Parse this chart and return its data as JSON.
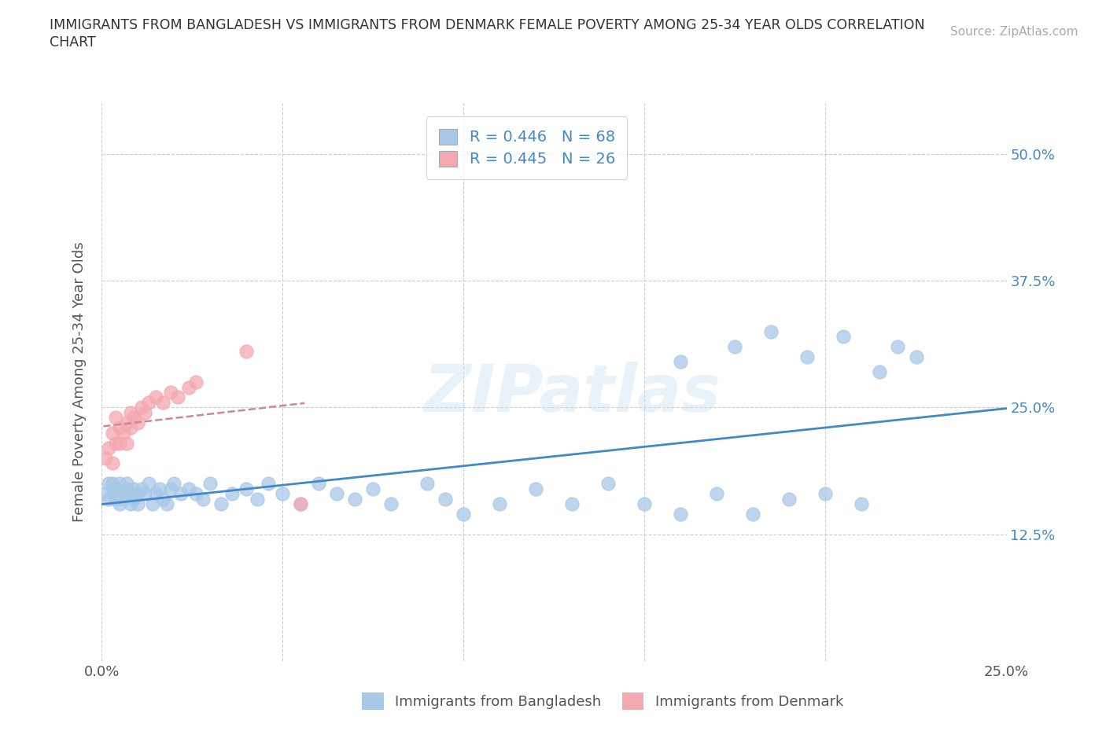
{
  "title_line1": "IMMIGRANTS FROM BANGLADESH VS IMMIGRANTS FROM DENMARK FEMALE POVERTY AMONG 25-34 YEAR OLDS CORRELATION",
  "title_line2": "CHART",
  "source_text": "Source: ZipAtlas.com",
  "ylabel": "Female Poverty Among 25-34 Year Olds",
  "xlim": [
    0.0,
    0.25
  ],
  "ylim": [
    0.0,
    0.55
  ],
  "xticks": [
    0.0,
    0.05,
    0.1,
    0.15,
    0.2,
    0.25
  ],
  "xticklabels": [
    "0.0%",
    "",
    "",
    "",
    "",
    "25.0%"
  ],
  "yticks": [
    0.0,
    0.125,
    0.25,
    0.375,
    0.5
  ],
  "yticklabels_left": [
    "",
    "",
    "",
    "",
    ""
  ],
  "yticklabels_right": [
    "",
    "12.5%",
    "25.0%",
    "37.5%",
    "50.0%"
  ],
  "watermark": "ZIPatlas",
  "color_bangladesh": "#a8c8e8",
  "color_denmark": "#f4a8b0",
  "trendline_color_bangladesh": "#4488cc",
  "trendline_color_denmark": "#cc8899",
  "background_color": "#ffffff",
  "grid_color": "#cccccc",
  "right_axis_color": "#4488cc",
  "legend_label1": "R = 0.446   N = 68",
  "legend_label2": "R = 0.445   N = 26",
  "bangladesh_x": [
    0.001,
    0.002,
    0.002,
    0.003,
    0.003,
    0.004,
    0.004,
    0.005,
    0.005,
    0.006,
    0.006,
    0.007,
    0.007,
    0.008,
    0.008,
    0.009,
    0.009,
    0.01,
    0.01,
    0.011,
    0.012,
    0.013,
    0.014,
    0.015,
    0.016,
    0.017,
    0.018,
    0.019,
    0.02,
    0.022,
    0.024,
    0.026,
    0.028,
    0.03,
    0.033,
    0.036,
    0.04,
    0.043,
    0.046,
    0.05,
    0.055,
    0.06,
    0.065,
    0.07,
    0.075,
    0.08,
    0.09,
    0.095,
    0.1,
    0.11,
    0.12,
    0.13,
    0.14,
    0.15,
    0.16,
    0.17,
    0.18,
    0.19,
    0.2,
    0.21,
    0.16,
    0.175,
    0.185,
    0.195,
    0.205,
    0.215,
    0.22,
    0.225
  ],
  "bangladesh_y": [
    0.165,
    0.16,
    0.175,
    0.165,
    0.175,
    0.16,
    0.17,
    0.155,
    0.175,
    0.165,
    0.16,
    0.17,
    0.175,
    0.155,
    0.165,
    0.16,
    0.17,
    0.165,
    0.155,
    0.17,
    0.165,
    0.175,
    0.155,
    0.165,
    0.17,
    0.16,
    0.155,
    0.17,
    0.175,
    0.165,
    0.17,
    0.165,
    0.16,
    0.175,
    0.155,
    0.165,
    0.17,
    0.16,
    0.175,
    0.165,
    0.155,
    0.175,
    0.165,
    0.16,
    0.17,
    0.155,
    0.175,
    0.16,
    0.145,
    0.155,
    0.17,
    0.155,
    0.175,
    0.155,
    0.145,
    0.165,
    0.145,
    0.16,
    0.165,
    0.155,
    0.295,
    0.31,
    0.325,
    0.3,
    0.32,
    0.285,
    0.31,
    0.3
  ],
  "denmark_x": [
    0.001,
    0.002,
    0.003,
    0.003,
    0.004,
    0.004,
    0.005,
    0.005,
    0.006,
    0.007,
    0.007,
    0.008,
    0.008,
    0.009,
    0.01,
    0.011,
    0.012,
    0.013,
    0.015,
    0.017,
    0.019,
    0.021,
    0.024,
    0.026,
    0.04,
    0.055
  ],
  "denmark_y": [
    0.2,
    0.21,
    0.195,
    0.225,
    0.215,
    0.24,
    0.215,
    0.23,
    0.225,
    0.235,
    0.215,
    0.245,
    0.23,
    0.24,
    0.235,
    0.25,
    0.245,
    0.255,
    0.26,
    0.255,
    0.265,
    0.26,
    0.27,
    0.275,
    0.305,
    0.155
  ]
}
